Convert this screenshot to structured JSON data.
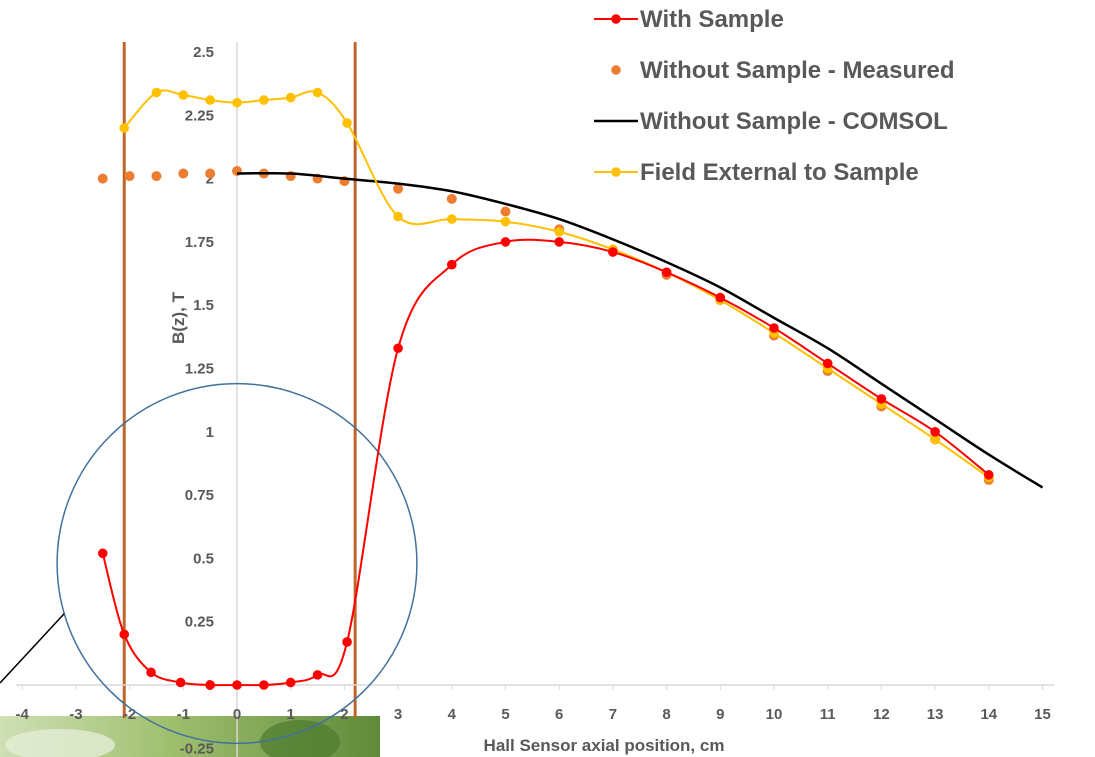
{
  "chart_data": {
    "type": "scatter",
    "title": "",
    "xlabel": "Hall Sensor axial position, cm",
    "ylabel": "B(z), T",
    "xlim": [
      -4,
      15
    ],
    "ylim": [
      -0.25,
      2.5
    ],
    "x_ticks": [
      "-4",
      "-3",
      "-2",
      "-1",
      "0",
      "1",
      "2",
      "3",
      "4",
      "5",
      "6",
      "7",
      "8",
      "9",
      "10",
      "11",
      "12",
      "13",
      "14",
      "15"
    ],
    "y_ticks": [
      "-0.25",
      "0",
      "0.25",
      "0.5",
      "0.75",
      "1",
      "1.25",
      "1.5",
      "1.75",
      "2",
      "2.25",
      "2.5"
    ],
    "grid": false,
    "legend_position": "top-right",
    "vertical_markers": {
      "x": [
        -2.1,
        2.2
      ],
      "color": "#C0652A"
    },
    "circle_annotation": {
      "center": [
        0,
        0.48
      ],
      "radius_x": 3.35,
      "color": "#41719C"
    },
    "series": [
      {
        "name": "With Sample",
        "style": "line-markers",
        "color": "#FF0000",
        "x": [
          -2.5,
          -2.1,
          -1.6,
          -1.05,
          -0.5,
          0,
          0.5,
          1,
          1.5,
          2.05,
          3,
          4,
          5,
          6,
          7,
          8,
          9,
          10,
          11,
          12,
          13,
          14
        ],
        "y": [
          0.52,
          0.2,
          0.05,
          0.01,
          0.0,
          0.0,
          0.0,
          0.01,
          0.04,
          0.17,
          1.33,
          1.66,
          1.75,
          1.75,
          1.71,
          1.63,
          1.53,
          1.41,
          1.27,
          1.13,
          1.0,
          0.83
        ]
      },
      {
        "name": "Without Sample - Measured",
        "style": "markers",
        "color": "#ED7D31",
        "x": [
          -2.5,
          -2,
          -1.5,
          -1,
          -0.5,
          0,
          0.5,
          1,
          1.5,
          2,
          3,
          4,
          5,
          6,
          7,
          8,
          9,
          10,
          11,
          12,
          13,
          14
        ],
        "y": [
          2.0,
          2.01,
          2.01,
          2.02,
          2.02,
          2.03,
          2.02,
          2.01,
          2.0,
          1.99,
          1.96,
          1.92,
          1.87,
          1.8,
          1.72,
          1.62,
          1.52,
          1.38,
          1.24,
          1.1,
          0.97,
          0.81
        ]
      },
      {
        "name": "Without Sample - COMSOL",
        "style": "line",
        "color": "#000000",
        "x": [
          0,
          1,
          2,
          3,
          4,
          5,
          6,
          7,
          8,
          9,
          10,
          11,
          12,
          13,
          14,
          15
        ],
        "y": [
          2.02,
          2.02,
          2.0,
          1.98,
          1.95,
          1.9,
          1.84,
          1.76,
          1.67,
          1.57,
          1.45,
          1.33,
          1.19,
          1.05,
          0.91,
          0.78
        ]
      },
      {
        "name": "Field External to Sample",
        "style": "line-markers",
        "color": "#FFC000",
        "x": [
          -2.1,
          -1.5,
          -1,
          -0.5,
          0,
          0.5,
          1,
          1.5,
          2.05,
          3,
          4,
          5,
          6,
          7,
          8,
          9,
          10,
          11,
          12,
          13,
          14
        ],
        "y": [
          2.2,
          2.34,
          2.33,
          2.31,
          2.3,
          2.31,
          2.32,
          2.34,
          2.22,
          1.85,
          1.84,
          1.83,
          1.79,
          1.72,
          1.63,
          1.52,
          1.39,
          1.25,
          1.11,
          0.97,
          0.82
        ]
      }
    ]
  }
}
